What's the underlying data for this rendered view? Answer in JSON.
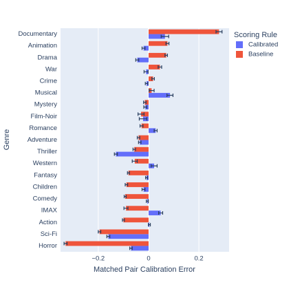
{
  "chart_data": {
    "type": "hbar",
    "x_label": "Matched Pair Calibration Error",
    "y_label": "Genre",
    "legend_title": "Scoring Rule",
    "categories": [
      "Documentary",
      "Animation",
      "Drama",
      "War",
      "Crime",
      "Musical",
      "Mystery",
      "Film-Noir",
      "Romance",
      "Adventure",
      "Thriller",
      "Western",
      "Fantasy",
      "Children",
      "Comedy",
      "IMAX",
      "Action",
      "Sci-Fi",
      "Horror"
    ],
    "series": [
      {
        "name": "Calibrated",
        "color": "#636efa",
        "values": [
          0.065,
          -0.02,
          -0.045,
          -0.01,
          -0.008,
          0.085,
          -0.013,
          -0.022,
          0.028,
          -0.035,
          -0.13,
          0.022,
          -0.008,
          -0.02,
          -0.005,
          0.048,
          0.003,
          -0.16,
          -0.07
        ],
        "errors": [
          0.015,
          0.006,
          0.006,
          0.008,
          0.005,
          0.012,
          0.006,
          0.015,
          0.006,
          0.005,
          0.006,
          0.012,
          0.004,
          0.006,
          0.004,
          0.008,
          0.004,
          0.006,
          0.005
        ]
      },
      {
        "name": "Baseline",
        "color": "#ef553b",
        "values": [
          0.28,
          0.075,
          0.07,
          0.045,
          0.018,
          0.012,
          -0.015,
          -0.03,
          -0.028,
          -0.04,
          -0.057,
          -0.055,
          -0.08,
          -0.088,
          -0.093,
          -0.09,
          -0.1,
          -0.195,
          -0.33
        ],
        "errors": [
          0.012,
          0.006,
          0.005,
          0.007,
          0.005,
          0.01,
          0.005,
          0.012,
          0.006,
          0.005,
          0.005,
          0.01,
          0.004,
          0.005,
          0.004,
          0.008,
          0.004,
          0.005,
          0.006
        ]
      }
    ],
    "error_color": "#2a3f5f",
    "xlim": [
      -0.35,
      0.32
    ],
    "xticks": [
      {
        "value": -0.2,
        "label": "−0.2"
      },
      0,
      0.2
    ],
    "grid": true,
    "background": "#e5ecf6"
  }
}
